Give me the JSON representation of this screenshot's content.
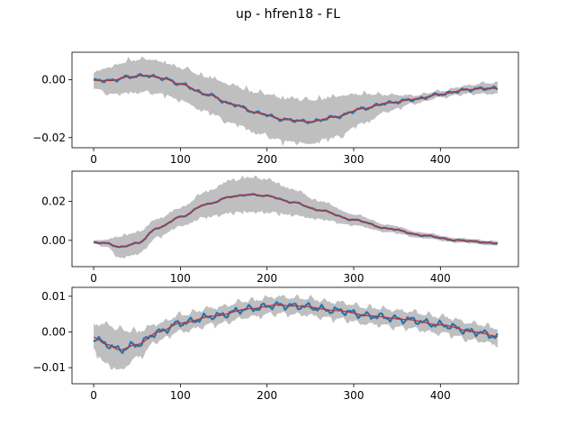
{
  "figure": {
    "title": "up - hfren18 - FL"
  },
  "colors": {
    "band": "#bfbfbf",
    "signal": "#1f77b4",
    "smooth": "#d62728",
    "axes": "#000000"
  },
  "chart_data": [
    {
      "type": "line",
      "title": "",
      "xlabel": "",
      "ylabel": "",
      "xlim": [
        -25,
        490
      ],
      "ylim": [
        -0.0235,
        0.0095
      ],
      "xticks": [
        0,
        100,
        200,
        300,
        400
      ],
      "xtick_labels": [
        "0",
        "100",
        "200",
        "300",
        "400"
      ],
      "yticks": [
        0.0,
        -0.02
      ],
      "ytick_labels": [
        "0.00",
        "−0.02"
      ],
      "grid": false,
      "legend": "none",
      "x_knots": [
        0,
        20,
        40,
        60,
        80,
        100,
        130,
        160,
        190,
        220,
        250,
        280,
        310,
        340,
        370,
        400,
        430,
        450,
        466
      ],
      "series": [
        {
          "role": "smooth",
          "values": [
            -0.0002,
            -0.0003,
            0.001,
            0.0015,
            0.0005,
            -0.0015,
            -0.005,
            -0.0085,
            -0.0115,
            -0.0138,
            -0.0145,
            -0.0128,
            -0.01,
            -0.008,
            -0.0068,
            -0.005,
            -0.0035,
            -0.003,
            -0.003
          ]
        },
        {
          "role": "band_halfwidth",
          "values": [
            0.003,
            0.005,
            0.006,
            0.006,
            0.006,
            0.006,
            0.0065,
            0.007,
            0.0075,
            0.008,
            0.008,
            0.0075,
            0.0055,
            0.003,
            0.0015,
            0.0012,
            0.0015,
            0.002,
            0.002
          ]
        }
      ],
      "noise_amplitude": 0.0007
    },
    {
      "type": "line",
      "title": "",
      "xlabel": "",
      "ylabel": "",
      "xlim": [
        -25,
        490
      ],
      "ylim": [
        -0.0135,
        0.0355
      ],
      "xticks": [
        0,
        100,
        200,
        300,
        400
      ],
      "xtick_labels": [
        "0",
        "100",
        "200",
        "300",
        "400"
      ],
      "yticks": [
        0.02,
        0.0
      ],
      "ytick_labels": [
        "0.02",
        "0.00"
      ],
      "grid": false,
      "legend": "none",
      "x_knots": [
        0,
        15,
        30,
        50,
        75,
        100,
        130,
        160,
        180,
        200,
        230,
        260,
        300,
        340,
        380,
        420,
        466
      ],
      "series": [
        {
          "role": "smooth",
          "values": [
            -0.001,
            -0.0015,
            -0.0035,
            -0.0015,
            0.0065,
            0.012,
            0.0185,
            0.0225,
            0.0235,
            0.0228,
            0.0195,
            0.0155,
            0.0105,
            0.006,
            0.0025,
            0.0,
            -0.0015
          ]
        },
        {
          "role": "band_halfwidth",
          "values": [
            0.001,
            0.002,
            0.006,
            0.006,
            0.005,
            0.005,
            0.007,
            0.009,
            0.0095,
            0.009,
            0.007,
            0.005,
            0.003,
            0.002,
            0.0015,
            0.0012,
            0.0012
          ]
        }
      ],
      "noise_amplitude": 0.0004
    },
    {
      "type": "line",
      "title": "",
      "xlabel": "",
      "ylabel": "",
      "xlim": [
        -25,
        490
      ],
      "ylim": [
        -0.0145,
        0.0125
      ],
      "xticks": [
        0,
        100,
        200,
        300,
        400
      ],
      "xtick_labels": [
        "0",
        "100",
        "200",
        "300",
        "400"
      ],
      "yticks": [
        0.01,
        0.0,
        -0.01
      ],
      "ytick_labels": [
        "0.01",
        "0.00",
        "−0.01"
      ],
      "grid": false,
      "legend": "none",
      "x_knots": [
        0,
        15,
        30,
        50,
        75,
        100,
        140,
        180,
        210,
        240,
        280,
        320,
        360,
        400,
        440,
        466
      ],
      "series": [
        {
          "role": "smooth",
          "values": [
            -0.0015,
            -0.0035,
            -0.005,
            -0.0035,
            0.0,
            0.0025,
            0.0045,
            0.0065,
            0.0075,
            0.0072,
            0.006,
            0.0045,
            0.0035,
            0.002,
            0.0,
            -0.0012
          ]
        },
        {
          "role": "band_halfwidth",
          "values": [
            0.004,
            0.006,
            0.006,
            0.004,
            0.0025,
            0.0025,
            0.0025,
            0.0025,
            0.0025,
            0.0025,
            0.0025,
            0.0025,
            0.0025,
            0.0025,
            0.0025,
            0.0025
          ]
        }
      ],
      "noise_amplitude": 0.0012
    }
  ]
}
